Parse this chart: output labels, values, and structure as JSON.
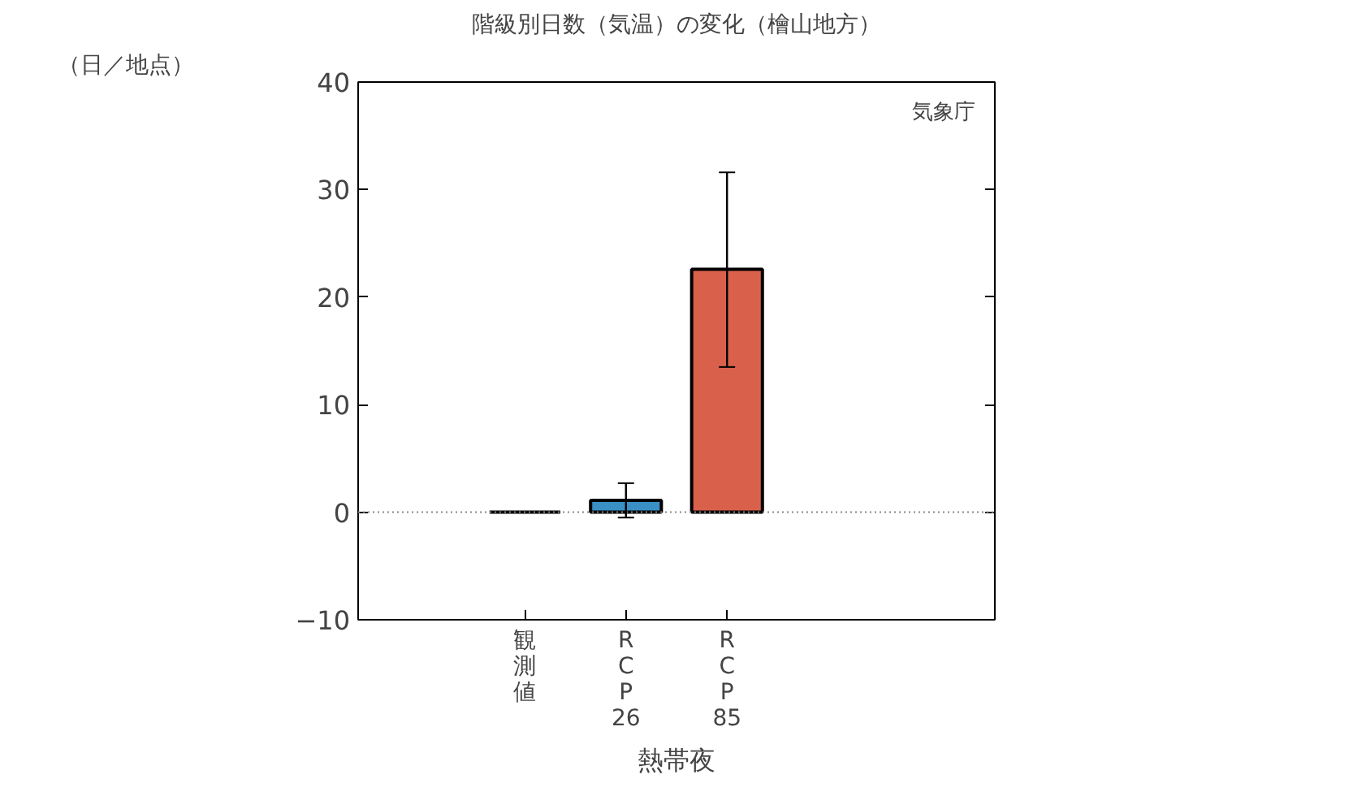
{
  "chart_data": {
    "type": "bar",
    "title": "階級別日数（気温）の変化（檜山地方）",
    "xlabel": "熱帯夜",
    "ylabel": "（日／地点）",
    "categories": [
      "観測値",
      "R\nC\nP\n26",
      "R\nC\nP\n85"
    ],
    "values": [
      0,
      1.1,
      22.6
    ],
    "colors": [
      "#000000",
      "#3a8fc4",
      "#d9614c"
    ],
    "errors": [
      null,
      [
        -0.5,
        2.7
      ],
      [
        13.5,
        31.6
      ]
    ],
    "ylim": [
      -10,
      40
    ],
    "yticks": [
      -10,
      0,
      10,
      20,
      30,
      40
    ],
    "ref_lines": [
      {
        "axis": "y",
        "value": 0,
        "color": "#888888",
        "line_style": "dotted"
      }
    ],
    "annotations": [
      "気象庁"
    ],
    "grid": false
  }
}
